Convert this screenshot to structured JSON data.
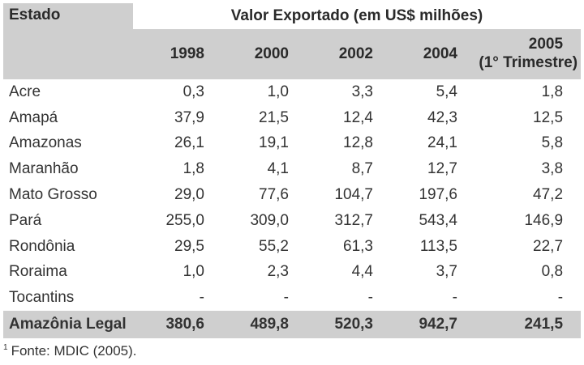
{
  "table": {
    "group_header": "Valor Exportado (em US$ milhões)",
    "state_header": "Estado",
    "years": [
      "1998",
      "2000",
      "2002",
      "2004"
    ],
    "last_year": "2005",
    "last_year_note": "(1° Trimestre)",
    "rows": [
      {
        "estado": "Acre",
        "values": [
          "0,3",
          "1,0",
          "3,3",
          "5,4",
          "1,8"
        ]
      },
      {
        "estado": "Amapá",
        "values": [
          "37,9",
          "21,5",
          "12,4",
          "42,3",
          "12,5"
        ]
      },
      {
        "estado": "Amazonas",
        "values": [
          "26,1",
          "19,1",
          "12,8",
          "24,1",
          "5,8"
        ]
      },
      {
        "estado": "Maranhão",
        "values": [
          "1,8",
          "4,1",
          "8,7",
          "12,7",
          "3,8"
        ]
      },
      {
        "estado": "Mato Grosso",
        "values": [
          "29,0",
          "77,6",
          "104,7",
          "197,6",
          "47,2"
        ]
      },
      {
        "estado": "Pará",
        "values": [
          "255,0",
          "309,0",
          "312,7",
          "543,4",
          "146,9"
        ]
      },
      {
        "estado": "Rondônia",
        "values": [
          "29,5",
          "55,2",
          "61,3",
          "113,5",
          "22,7"
        ]
      },
      {
        "estado": "Roraima",
        "values": [
          "1,0",
          "2,3",
          "4,4",
          "3,7",
          "0,8"
        ]
      },
      {
        "estado": "Tocantins",
        "values": [
          "-",
          "-",
          "-",
          "-",
          "-"
        ]
      }
    ],
    "total": {
      "estado": "Amazônia Legal",
      "values": [
        "380,6",
        "489,8",
        "520,3",
        "942,7",
        "241,5"
      ]
    }
  },
  "footnote": {
    "marker": "1",
    "text": "Fonte: MDIC (2005)."
  }
}
